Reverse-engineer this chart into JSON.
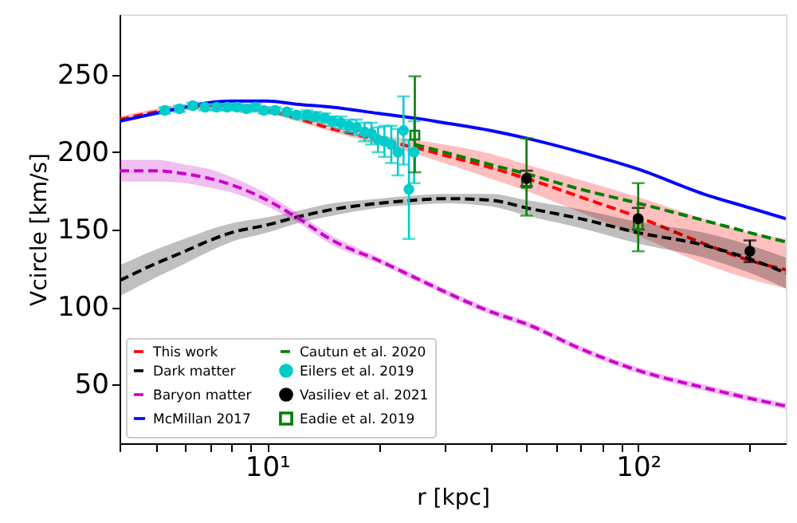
{
  "chart_data": {
    "type": "line",
    "xlabel": "r [kpc]",
    "ylabel": "Vcircle [km/s]",
    "log": "x",
    "xlim": [
      4,
      250
    ],
    "ylim": [
      12,
      289
    ],
    "xticks": [
      {
        "value": 4,
        "label": null
      },
      {
        "value": 5,
        "label": null
      },
      {
        "value": 6,
        "label": null
      },
      {
        "value": 7,
        "label": null
      },
      {
        "value": 8,
        "label": null
      },
      {
        "value": 9,
        "label": null
      },
      {
        "value": 10,
        "label": "10¹"
      },
      {
        "value": 20,
        "label": null
      },
      {
        "value": 30,
        "label": null
      },
      {
        "value": 40,
        "label": null
      },
      {
        "value": 50,
        "label": null
      },
      {
        "value": 60,
        "label": null
      },
      {
        "value": 70,
        "label": null
      },
      {
        "value": 80,
        "label": null
      },
      {
        "value": 90,
        "label": null
      },
      {
        "value": 100,
        "label": "10²"
      },
      {
        "value": 200,
        "label": null
      }
    ],
    "yticks": [
      50,
      100,
      150,
      200,
      250
    ],
    "grid": false,
    "legend": "bottom left",
    "series": [
      {
        "name": "This work",
        "type": "line",
        "line_style": "dashed",
        "color": "#ff0000",
        "x": [
          4,
          5,
          6,
          7,
          8,
          10,
          12,
          15,
          20,
          25,
          30,
          40,
          50,
          70,
          100,
          150,
          200,
          250
        ],
        "values": [
          221,
          226,
          229,
          230,
          230,
          227,
          222,
          215,
          208,
          203,
          198,
          190,
          183,
          171,
          158,
          141,
          130,
          124
        ],
        "upper": [
          223,
          228,
          231,
          232,
          232,
          229,
          224,
          217,
          211,
          208,
          205,
          199,
          192,
          182,
          171,
          157,
          148,
          144
        ],
        "lower": [
          219,
          224,
          227,
          228,
          228,
          225,
          220,
          213,
          205,
          199,
          193,
          183,
          175,
          161,
          146,
          128,
          118,
          112
        ]
      },
      {
        "name": "Dark matter",
        "type": "line",
        "line_style": "dashed",
        "color": "#000000",
        "x": [
          4,
          5,
          6,
          7,
          8,
          10,
          12,
          15,
          20,
          25,
          30,
          40,
          50,
          70,
          100,
          150,
          200,
          250
        ],
        "values": [
          117,
          128,
          136,
          143,
          148,
          153,
          158,
          163,
          167,
          169,
          170,
          169,
          164,
          157,
          148,
          140,
          131,
          122
        ],
        "upper": [
          127,
          137,
          144,
          150,
          154,
          158,
          162,
          167,
          170,
          172,
          173,
          173,
          169,
          163,
          155,
          148,
          140,
          132
        ],
        "lower": [
          107,
          119,
          128,
          136,
          142,
          148,
          154,
          159,
          164,
          166,
          167,
          165,
          159,
          151,
          141,
          132,
          122,
          112
        ]
      },
      {
        "name": "Baryon matter",
        "type": "line",
        "line_style": "dashed",
        "color": "#cc00cc",
        "x": [
          4,
          5,
          6,
          7,
          8,
          10,
          12,
          15,
          20,
          25,
          30,
          40,
          50,
          70,
          100,
          150,
          200,
          250
        ],
        "values": [
          188,
          188,
          186,
          183,
          179,
          169,
          158,
          143,
          130,
          119,
          110,
          97,
          89,
          73,
          59,
          48,
          41,
          36
        ],
        "upper": [
          195,
          195,
          192,
          189,
          184,
          173,
          161,
          146,
          132,
          121,
          112,
          99,
          91,
          75,
          61,
          50,
          43,
          38
        ],
        "lower": [
          181,
          181,
          180,
          177,
          174,
          165,
          155,
          140,
          128,
          117,
          108,
          95,
          87,
          71,
          57,
          46,
          39,
          34
        ]
      },
      {
        "name": "McMillan 2017",
        "type": "line",
        "line_style": "solid",
        "color": "#0000ff",
        "x": [
          4,
          5,
          6,
          7,
          8,
          10,
          12,
          15,
          20,
          25,
          30,
          40,
          50,
          70,
          100,
          150,
          200,
          250
        ],
        "values": [
          220,
          225,
          229,
          232,
          233,
          233,
          231,
          229,
          225,
          222,
          219,
          214,
          209,
          200,
          189,
          173,
          164,
          157
        ]
      },
      {
        "name": "Cautun et al. 2020",
        "type": "line",
        "line_style": "dashed",
        "color": "#008000",
        "x": [
          25,
          30,
          40,
          50,
          70,
          100,
          150,
          200,
          250
        ],
        "values": [
          205,
          200,
          192,
          186,
          176,
          167,
          156,
          148,
          142
        ]
      },
      {
        "name": "Eilers et al. 2019",
        "type": "scatter",
        "marker": "circle",
        "color": "#00cccc",
        "x": [
          5.3,
          5.8,
          6.3,
          6.8,
          7.3,
          7.8,
          8.3,
          8.8,
          9.3,
          9.8,
          10.5,
          11.3,
          12.0,
          12.8,
          13.5,
          14.3,
          15.0,
          15.8,
          16.6,
          17.4,
          18.3,
          19.1,
          19.9,
          20.7,
          21.6,
          22.5,
          23.3,
          24.1,
          24.9
        ],
        "values": [
          227,
          228,
          230,
          229,
          229,
          229,
          229,
          228,
          229,
          227,
          227,
          226,
          224,
          224,
          223,
          222,
          220,
          219,
          217,
          216,
          213,
          212,
          208,
          207,
          205,
          200,
          214,
          176,
          200
        ],
        "errors": [
          2,
          2,
          2,
          2,
          2,
          2,
          2,
          2,
          2,
          2,
          2,
          2,
          2,
          3,
          3,
          3,
          3,
          4,
          4,
          5,
          6,
          7,
          8,
          10,
          12,
          15,
          22,
          32,
          20
        ]
      },
      {
        "name": "Vasiliev et al. 2021",
        "type": "scatter",
        "marker": "circle",
        "color": "#000000",
        "x": [
          50,
          100,
          200
        ],
        "values": [
          183,
          157,
          136
        ],
        "errors": [
          5,
          7,
          7
        ]
      },
      {
        "name": "Eadie et al. 2019",
        "type": "scatter",
        "marker": "square",
        "color": "#008000",
        "x": [
          25,
          50,
          100
        ],
        "values": [
          211,
          180,
          153
        ],
        "errors": [
          [
            187,
            249
          ],
          [
            159,
            209
          ],
          [
            136,
            180
          ]
        ]
      }
    ]
  }
}
